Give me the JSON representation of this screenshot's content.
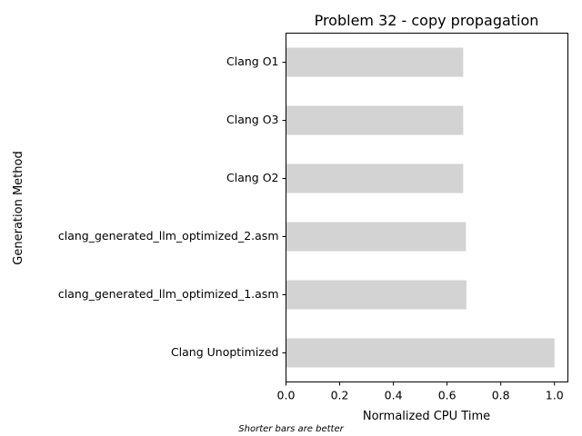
{
  "chart_data": {
    "type": "bar",
    "orientation": "horizontal",
    "title": "Problem 32 - copy propagation",
    "xlabel": "Normalized CPU Time",
    "ylabel": "Generation Method",
    "categories": [
      "Clang O1",
      "Clang O3",
      "Clang O2",
      "clang_generated_llm_optimized_2.asm",
      "clang_generated_llm_optimized_1.asm",
      "Clang Unoptimized"
    ],
    "values": [
      0.66,
      0.66,
      0.66,
      0.67,
      0.672,
      1.0
    ],
    "xlim": [
      0,
      1.05
    ],
    "xticks": [
      "0.0",
      "0.2",
      "0.4",
      "0.6",
      "0.8",
      "1.0"
    ],
    "grid": false,
    "bar_color": "#d3d3d3",
    "footnote": "Shorter bars are better"
  }
}
